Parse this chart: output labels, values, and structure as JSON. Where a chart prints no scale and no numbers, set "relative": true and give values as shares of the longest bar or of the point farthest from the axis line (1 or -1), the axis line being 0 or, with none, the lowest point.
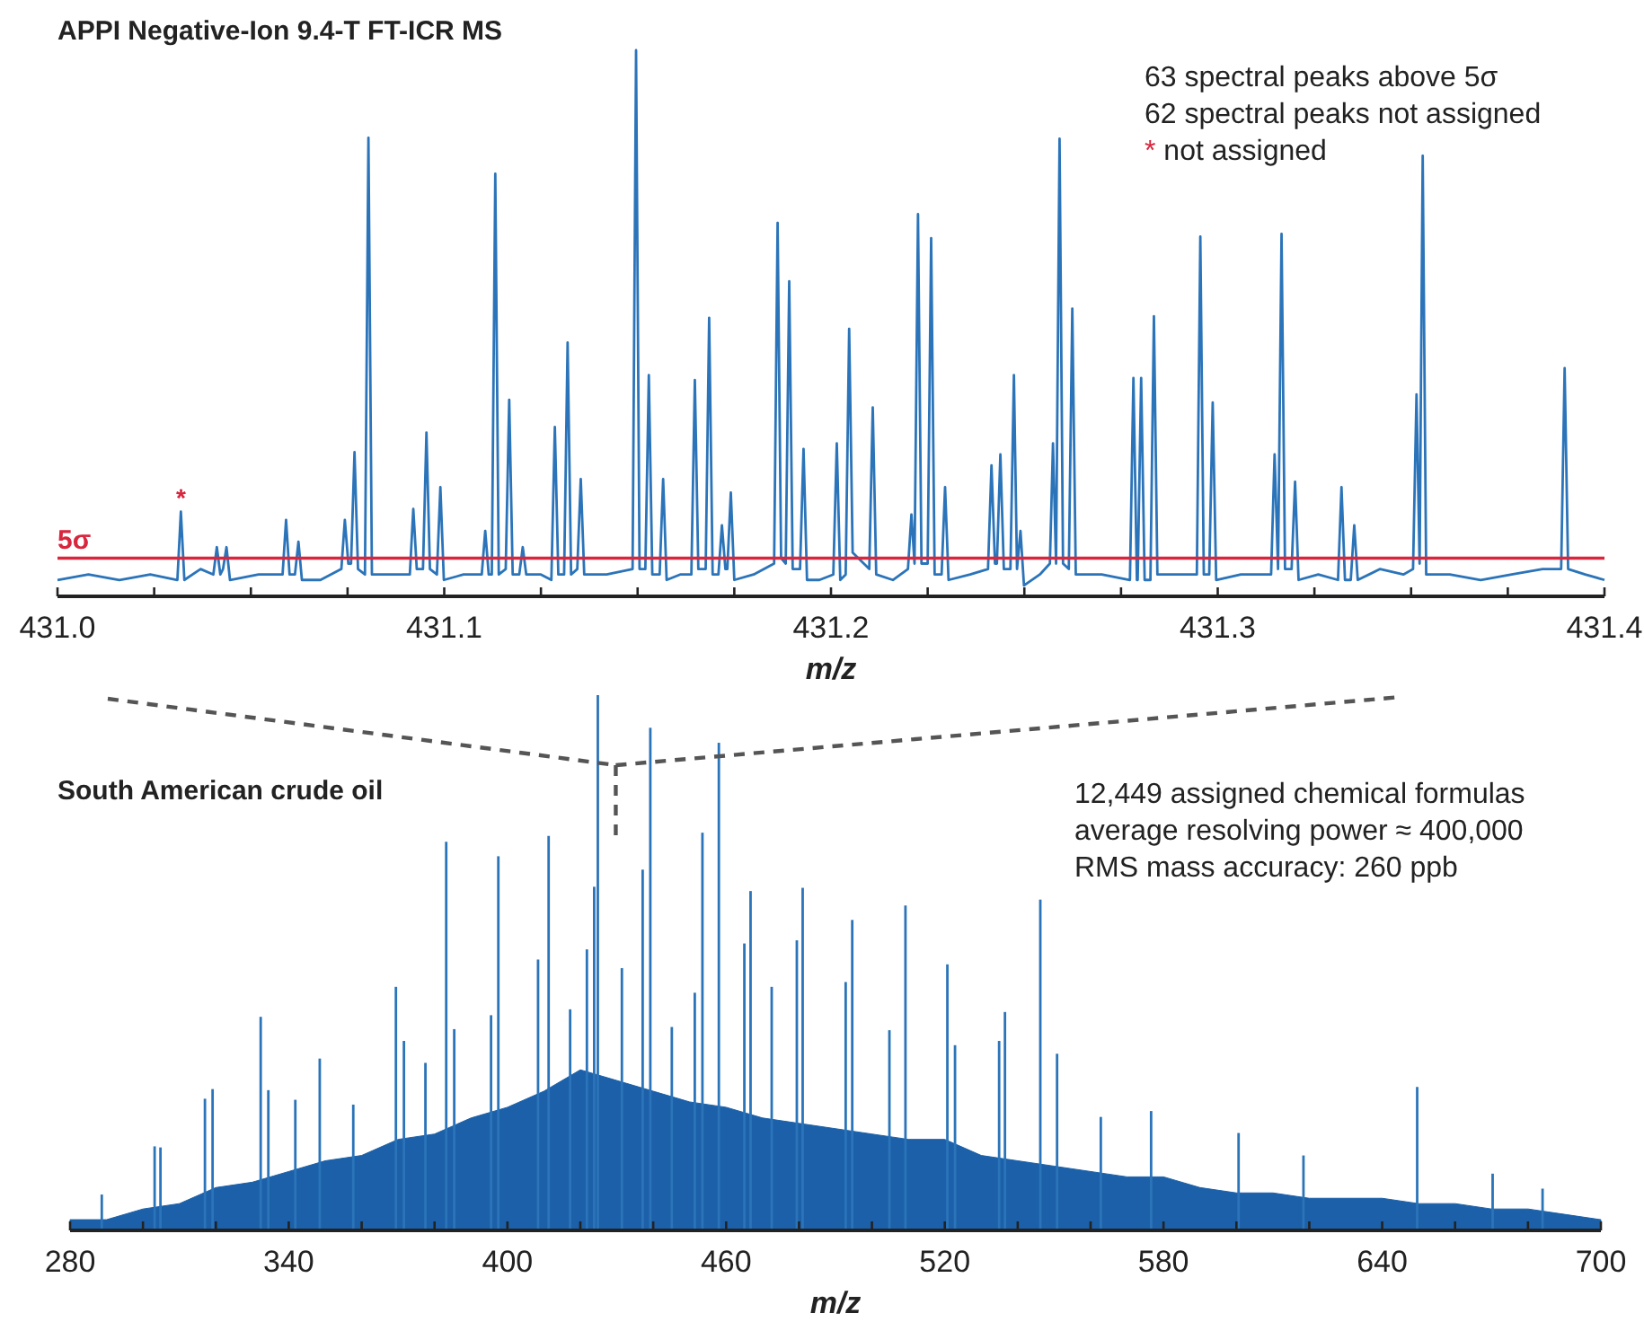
{
  "chart_data": [
    {
      "type": "line",
      "title": "APPI Negative-Ion 9.4-T FT-ICR MS",
      "xlabel": "m/z",
      "relative": true,
      "x": [
        431.0,
        431.008,
        431.016,
        431.024,
        431.031,
        431.0319,
        431.0328,
        431.037,
        431.0403,
        431.0412,
        431.0421,
        431.0428,
        431.0437,
        431.0446,
        431.052,
        431.0582,
        431.0591,
        431.06,
        431.0614,
        431.0623,
        431.0632,
        431.068,
        431.0734,
        431.0743,
        431.0752,
        431.0759,
        431.0768,
        431.0777,
        431.0795,
        431.0804,
        431.0813,
        431.086,
        431.0911,
        431.092,
        431.0929,
        431.0945,
        431.0954,
        431.0963,
        431.0981,
        431.099,
        431.0999,
        431.105,
        431.1097,
        431.1106,
        431.1115,
        431.1123,
        431.1132,
        431.1141,
        431.1159,
        431.1168,
        431.1177,
        431.1194,
        431.1203,
        431.1212,
        431.125,
        431.1277,
        431.1286,
        431.1295,
        431.131,
        431.1319,
        431.1328,
        431.1344,
        431.1353,
        431.1362,
        431.142,
        431.1487,
        431.1496,
        431.1505,
        431.152,
        431.1529,
        431.1538,
        431.1557,
        431.1566,
        431.1575,
        431.161,
        431.1639,
        431.1648,
        431.1657,
        431.1676,
        431.1685,
        431.1694,
        431.1709,
        431.1718,
        431.1727,
        431.1732,
        431.1741,
        431.175,
        431.18,
        431.1853,
        431.1862,
        431.1871,
        431.1883,
        431.1892,
        431.1901,
        431.192,
        431.1929,
        431.1938,
        431.197,
        431.2006,
        431.2015,
        431.2024,
        431.2038,
        431.2047,
        431.2056,
        431.2099,
        431.2108,
        431.2117,
        431.216,
        431.2199,
        431.2208,
        431.2216,
        431.2225,
        431.2234,
        431.225,
        431.2259,
        431.2268,
        431.2286,
        431.2295,
        431.2304,
        431.236,
        431.2406,
        431.2415,
        431.2424,
        431.2429,
        431.2438,
        431.2447,
        431.2464,
        431.2473,
        431.2481,
        431.249,
        431.2499,
        431.254,
        431.2566,
        431.2574,
        431.2582,
        431.2591,
        431.26,
        431.2615,
        431.2624,
        431.2633,
        431.27,
        431.2773,
        431.2782,
        431.2791,
        431.2793,
        431.2802,
        431.2811,
        431.2826,
        431.2835,
        431.2844,
        431.29,
        431.2946,
        431.2955,
        431.2964,
        431.2978,
        431.2987,
        431.2996,
        431.306,
        431.3138,
        431.3147,
        431.3156,
        431.3165,
        431.3174,
        431.3191,
        431.32,
        431.3209,
        431.326,
        431.3311,
        431.332,
        431.3329,
        431.3344,
        431.3353,
        431.3362,
        431.342,
        431.348,
        431.3505,
        431.3514,
        431.3522,
        431.353,
        431.3539,
        431.36,
        431.368,
        431.376,
        431.384,
        431.3888,
        431.3897,
        431.3906,
        431.395,
        431.4
      ],
      "series": [
        {
          "color": "#2b74b9",
          "values": [
            0.03,
            0.04,
            0.03,
            0.04,
            0.03,
            0.155,
            0.03,
            0.05,
            0.04,
            0.09,
            0.04,
            0.05,
            0.09,
            0.03,
            0.04,
            0.04,
            0.14,
            0.04,
            0.04,
            0.1,
            0.03,
            0.03,
            0.05,
            0.14,
            0.06,
            0.06,
            0.264,
            0.05,
            0.04,
            0.84,
            0.04,
            0.04,
            0.04,
            0.16,
            0.05,
            0.05,
            0.3,
            0.05,
            0.04,
            0.2,
            0.03,
            0.04,
            0.04,
            0.12,
            0.04,
            0.04,
            0.774,
            0.04,
            0.05,
            0.36,
            0.04,
            0.04,
            0.09,
            0.04,
            0.04,
            0.03,
            0.31,
            0.04,
            0.04,
            0.465,
            0.04,
            0.05,
            0.215,
            0.04,
            0.04,
            0.05,
            1.0,
            0.05,
            0.05,
            0.405,
            0.04,
            0.04,
            0.215,
            0.03,
            0.04,
            0.04,
            0.396,
            0.05,
            0.05,
            0.51,
            0.04,
            0.04,
            0.13,
            0.05,
            0.05,
            0.19,
            0.03,
            0.04,
            0.06,
            0.684,
            0.07,
            0.06,
            0.577,
            0.05,
            0.05,
            0.27,
            0.03,
            0.03,
            0.04,
            0.28,
            0.03,
            0.04,
            0.49,
            0.08,
            0.05,
            0.346,
            0.04,
            0.03,
            0.05,
            0.15,
            0.06,
            0.7,
            0.06,
            0.06,
            0.656,
            0.04,
            0.04,
            0.2,
            0.03,
            0.04,
            0.05,
            0.24,
            0.06,
            0.06,
            0.26,
            0.05,
            0.05,
            0.405,
            0.05,
            0.12,
            0.02,
            0.04,
            0.06,
            0.28,
            0.06,
            0.838,
            0.06,
            0.05,
            0.527,
            0.04,
            0.04,
            0.03,
            0.4,
            0.03,
            0.03,
            0.4,
            0.03,
            0.03,
            0.513,
            0.04,
            0.04,
            0.04,
            0.659,
            0.04,
            0.04,
            0.355,
            0.03,
            0.04,
            0.04,
            0.26,
            0.05,
            0.664,
            0.05,
            0.05,
            0.21,
            0.03,
            0.04,
            0.03,
            0.2,
            0.03,
            0.03,
            0.13,
            0.03,
            0.05,
            0.04,
            0.05,
            0.37,
            0.06,
            0.807,
            0.04,
            0.04,
            0.03,
            0.04,
            0.05,
            0.05,
            0.418,
            0.05,
            0.04,
            0.03
          ]
        }
      ],
      "xlim": [
        431.0,
        431.4
      ],
      "xticks": [
        {
          "value": 431.0,
          "label": "431.0"
        },
        {
          "value": 431.025,
          "label": null
        },
        {
          "value": 431.05,
          "label": null
        },
        {
          "value": 431.075,
          "label": null
        },
        431.1,
        {
          "value": 431.125,
          "label": null
        },
        {
          "value": 431.15,
          "label": null
        },
        {
          "value": 431.175,
          "label": null
        },
        431.2,
        {
          "value": 431.225,
          "label": null
        },
        {
          "value": 431.25,
          "label": null
        },
        {
          "value": 431.275,
          "label": null
        },
        431.3,
        {
          "value": 431.325,
          "label": null
        },
        {
          "value": 431.35,
          "label": null
        },
        {
          "value": 431.375,
          "label": null
        },
        431.4
      ],
      "ref_lines": [
        {
          "axis": "y",
          "value": 0.07,
          "label": "5σ",
          "color": "#d7263d"
        }
      ],
      "annotations": [
        "63 spectral peaks above 5σ",
        "62 spectral peaks not assigned",
        "* not assigned",
        {
          "text": "*",
          "x": 431.0319,
          "y": 0.155
        }
      ]
    },
    {
      "type": "bar",
      "title": "South American crude oil",
      "xlabel": "m/z",
      "relative": true,
      "series": [
        {
          "type": "area",
          "color": "#1b60a8",
          "x": [
            280,
            290,
            300,
            310,
            320,
            330,
            340,
            350,
            360,
            370,
            380,
            390,
            400,
            410,
            420,
            430,
            440,
            450,
            460,
            470,
            480,
            490,
            500,
            510,
            520,
            530,
            540,
            550,
            560,
            570,
            580,
            590,
            600,
            610,
            620,
            630,
            640,
            650,
            660,
            670,
            680,
            690,
            700
          ],
          "values": [
            0.02,
            0.02,
            0.04,
            0.05,
            0.08,
            0.09,
            0.11,
            0.13,
            0.14,
            0.17,
            0.18,
            0.21,
            0.23,
            0.26,
            0.3,
            0.28,
            0.26,
            0.24,
            0.23,
            0.21,
            0.2,
            0.19,
            0.18,
            0.17,
            0.17,
            0.14,
            0.13,
            0.12,
            0.11,
            0.1,
            0.1,
            0.08,
            0.07,
            0.07,
            0.06,
            0.06,
            0.06,
            0.05,
            0.05,
            0.04,
            0.04,
            0.03,
            0.02
          ]
        },
        {
          "color": "#2b74b9",
          "x": [
            288.7,
            303.2,
            304.8,
            317.0,
            319.1,
            332.3,
            334.4,
            341.8,
            348.5,
            357.7,
            369.4,
            371.6,
            377.5,
            383.2,
            385.4,
            395.5,
            397.5,
            408.4,
            411.3,
            417.2,
            421.8,
            423.8,
            424.8,
            431.4,
            437.1,
            439.2,
            445.1,
            451.4,
            453.5,
            458.0,
            465.0,
            466.7,
            472.5,
            479.4,
            481.0,
            492.8,
            494.6,
            504.8,
            509.2,
            520.7,
            522.8,
            534.9,
            536.5,
            546.2,
            550.8,
            562.8,
            576.6,
            600.6,
            618.4,
            649.6,
            670.3,
            684.0
          ],
          "values": [
            0.067,
            0.157,
            0.155,
            0.246,
            0.264,
            0.399,
            0.262,
            0.244,
            0.321,
            0.235,
            0.455,
            0.354,
            0.313,
            0.726,
            0.376,
            0.402,
            0.699,
            0.506,
            0.737,
            0.413,
            0.525,
            0.642,
            1.0,
            0.49,
            0.674,
            0.939,
            0.38,
            0.444,
            0.743,
            0.911,
            0.536,
            0.634,
            0.455,
            0.542,
            0.64,
            0.464,
            0.58,
            0.374,
            0.607,
            0.497,
            0.346,
            0.354,
            0.408,
            0.618,
            0.33,
            0.212,
            0.223,
            0.182,
            0.14,
            0.268,
            0.106,
            0.078
          ]
        }
      ],
      "xlim": [
        280,
        700
      ],
      "xticks": [
        280,
        {
          "value": 300,
          "label": null
        },
        {
          "value": 320,
          "label": null
        },
        340,
        {
          "value": 360,
          "label": null
        },
        {
          "value": 380,
          "label": null
        },
        400,
        {
          "value": 420,
          "label": null
        },
        {
          "value": 440,
          "label": null
        },
        460,
        {
          "value": 480,
          "label": null
        },
        {
          "value": 500,
          "label": null
        },
        520,
        {
          "value": 540,
          "label": null
        },
        {
          "value": 560,
          "label": null
        },
        580,
        {
          "value": 600,
          "label": null
        },
        {
          "value": 620,
          "label": null
        },
        640,
        {
          "value": 660,
          "label": null
        },
        {
          "value": 680,
          "label": null
        },
        700
      ],
      "annotations": [
        "12,449 assigned chemical formulas",
        "average resolving power ≈ 400,000",
        "RMS mass accuracy: 260 ppb"
      ]
    }
  ]
}
